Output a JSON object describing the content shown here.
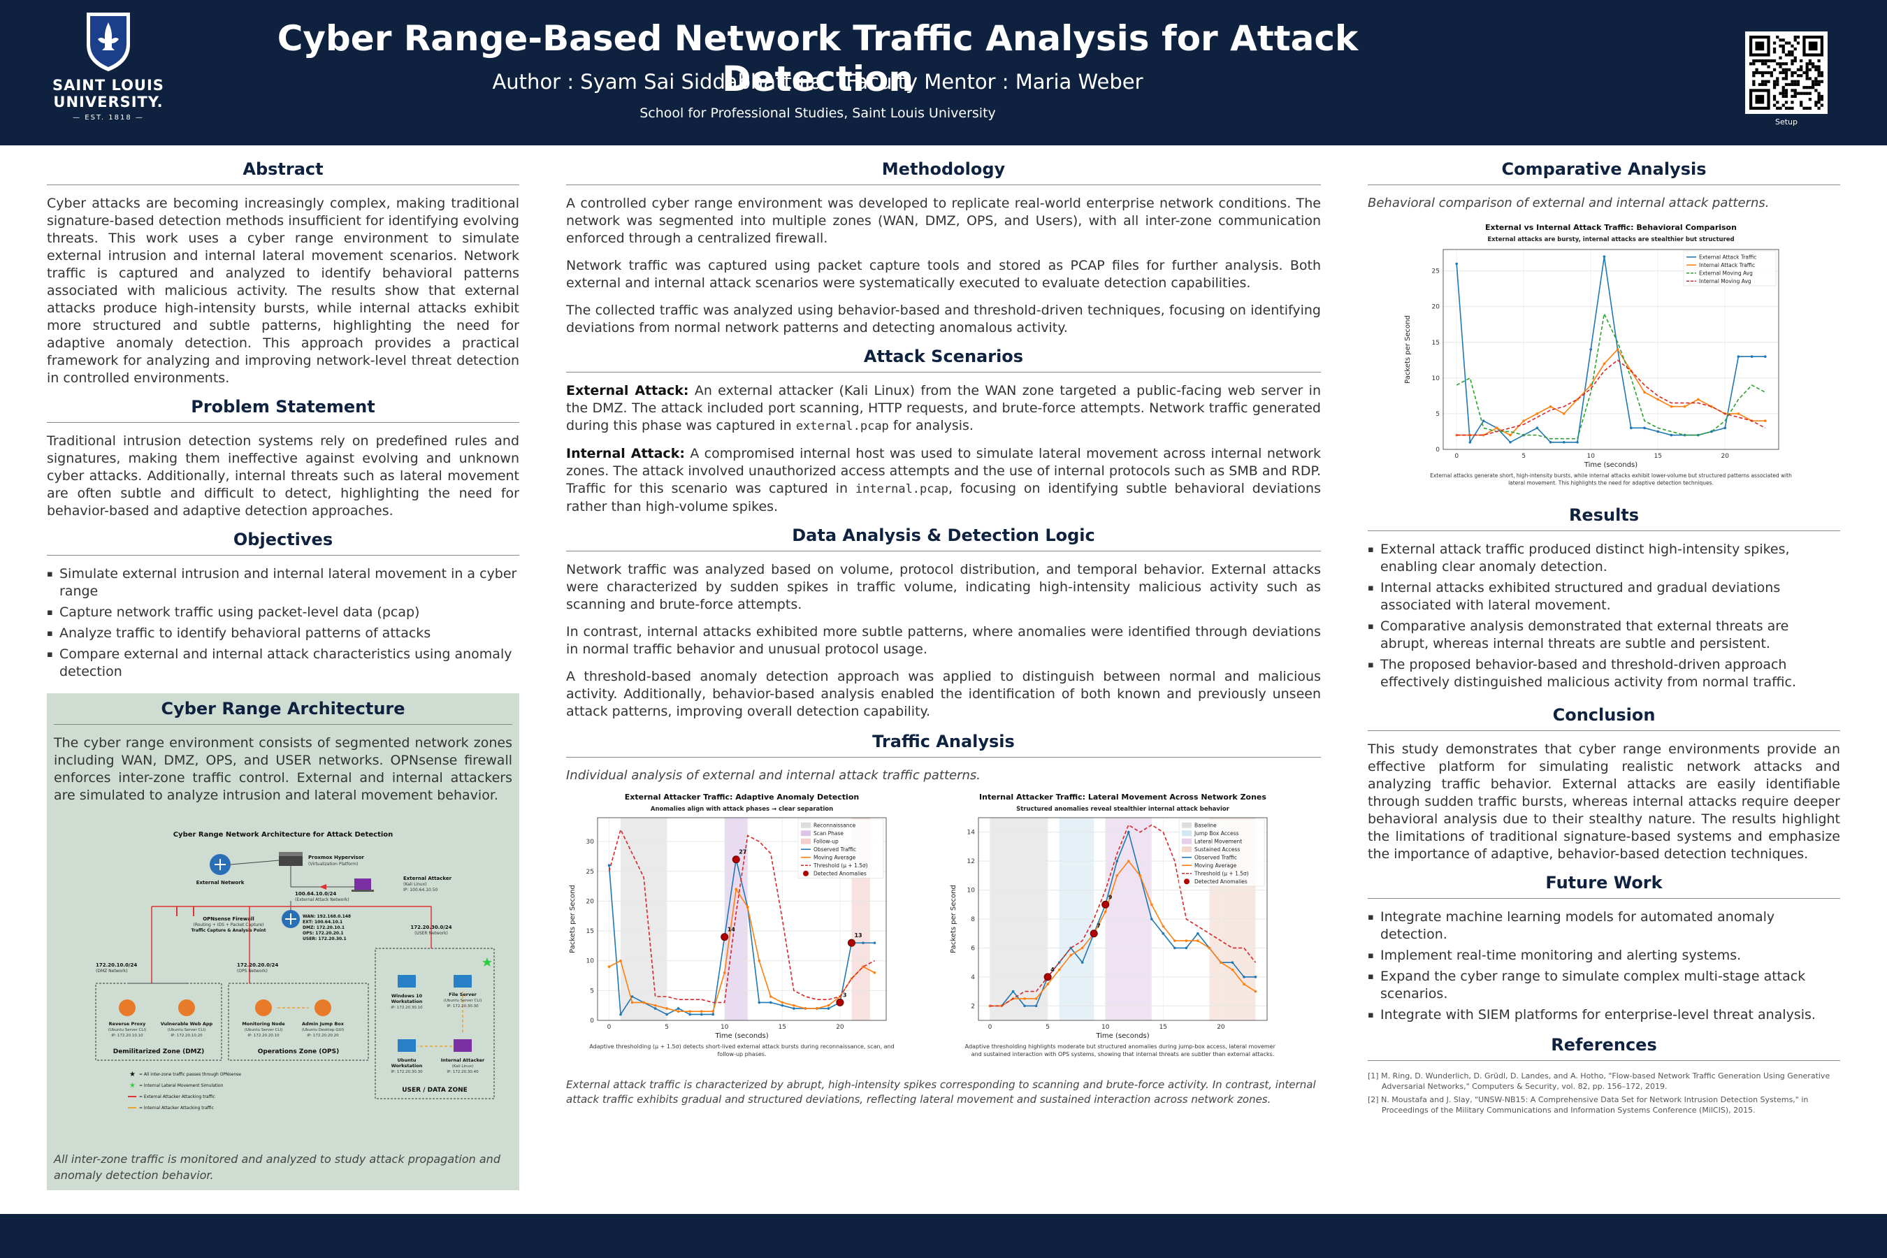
{
  "header": {
    "logo_name_line1": "SAINT LOUIS",
    "logo_name_line2": "UNIVERSITY.",
    "logo_est": "EST. 1818",
    "title": "Cyber Range-Based Network Traffic Analysis for Attack Detection",
    "author": "Author : Syam Sai Siddabhattula",
    "mentor": "Faculty Mentor : Maria Weber",
    "school": "School for Professional Studies, Saint Louis University",
    "qr_label": "Setup"
  },
  "abstract": {
    "heading": "Abstract",
    "text": "Cyber attacks are becoming increasingly complex, making traditional signature-based detection methods insufficient for identifying evolving threats. This work uses a cyber range environment to simulate external intrusion and internal lateral movement scenarios. Network traffic is captured and analyzed to identify behavioral patterns associated with malicious activity. The results show that external attacks produce high-intensity bursts, while internal attacks exhibit more structured and subtle patterns, highlighting the need for adaptive anomaly detection. This approach provides a practical framework for analyzing and improving network-level threat detection in controlled environments."
  },
  "problem": {
    "heading": "Problem Statement",
    "text": "Traditional intrusion detection systems rely on predefined rules and signatures, making them ineffective against evolving and unknown cyber attacks. Additionally, internal threats such as lateral movement are often subtle and difficult to detect, highlighting the need for behavior-based and adaptive detection approaches."
  },
  "objectives": {
    "heading": "Objectives",
    "items": [
      "Simulate external intrusion and internal lateral movement in a cyber range",
      "Capture network traffic using packet-level data (pcap)",
      "Analyze traffic to identify behavioral patterns of attacks",
      "Compare external and internal attack characteristics using anomaly detection"
    ]
  },
  "architecture": {
    "heading": "Cyber Range Architecture",
    "text": "The cyber range environment consists of segmented network zones including WAN, DMZ, OPS, and USER networks. OPNsense firewall enforces inter-zone traffic control. External and internal attackers are simulated to analyze intrusion and lateral movement behavior.",
    "diagram": {
      "title": "Cyber Range Network Architecture for Attack Detection",
      "external_network": "External Network",
      "hypervisor": "Proxmox Hypervisor",
      "hypervisor_sub": "(Virtualization Platform)",
      "ext_attacker": "External Attacker",
      "ext_attacker_sub": "(Kali Linux)",
      "ext_attacker_ip": "IP: 100.64.10.50",
      "ext_net": "100.64.10.0/24",
      "ext_net_sub": "(External Attack Network)",
      "firewall": "OPNsense Firewall",
      "firewall_sub": "(Routing + IDS + Packet Capture)",
      "firewall_sub2": "Traffic Capture & Analysis Point",
      "wan": "WAN: 192.168.0.148",
      "ext": "EXT: 100.64.10.1",
      "dmz_ip": "DMZ: 172.20.10.1",
      "ops_ip": "OPS: 172.20.20.1",
      "user_ip": "USER: 172.20.30.1",
      "dmz_net": "172.20.10.0/24",
      "dmz_net_sub": "(DMZ Network)",
      "ops_net": "172.20.20.0/24",
      "ops_net_sub": "(OPS Network)",
      "user_net": "172.20.30.0/24",
      "user_net_sub": "(USER Network)",
      "rp": "Reverse Proxy",
      "rp_sub": "(Ubuntu Server CLI)",
      "rp_ip": "IP: 172.20.10.10",
      "vw": "Vulnerable Web App",
      "vw_sub": "(Ubuntu Server CLI)",
      "vw_ip": "IP: 172.20.10.20",
      "mn": "Monitoring Node",
      "mn_sub": "(Ubuntu Server CLI)",
      "mn_ip": "IP: 172.20.20.10",
      "aj": "Admin Jump Box",
      "aj_sub": "(Ubuntu Desktop GUI)",
      "aj_ip": "IP: 172.20.20.20",
      "w10": "Windows 10",
      "w10b": "Workstation",
      "w10_ip": "IP: 172.20.30.10",
      "fs": "File Server",
      "fs_sub": "(Ubuntu Server CLI)",
      "fs_ip": "IP: 172.20.30.30",
      "uw": "Ubuntu",
      "uwb": "Workstation",
      "uw_ip": "IP: 172.20.30.30",
      "ia": "Internal Attacker",
      "ia_sub": "(Kali Linux)",
      "ia_ip": "IP: 172.20.30.40",
      "zone_dmz": "Demilitarized Zone (DMZ)",
      "zone_ops": "Operations Zone (OPS)",
      "zone_user": "USER / DATA ZONE",
      "legend": [
        "= All inter-zone traffic passes through OPNsense",
        "= Internal Lateral Movement Simulation",
        "= External Attacker Attacking traffic",
        "= Internal Attacker Attacking traffic"
      ]
    },
    "caption": "All inter-zone traffic is monitored and analyzed to study attack propagation and anomaly detection behavior."
  },
  "methodology": {
    "heading": "Methodology",
    "paras": [
      "A controlled cyber range environment was developed to replicate real-world enterprise network conditions. The network was segmented into multiple zones (WAN, DMZ, OPS, and Users), with all inter-zone communication enforced through a centralized firewall.",
      "Network traffic was captured using packet capture tools and stored as PCAP files for further analysis. Both external and internal attack scenarios were systematically executed to evaluate detection capabilities.",
      "The collected traffic was analyzed using behavior-based and threshold-driven techniques, focusing on identifying deviations from normal network patterns and detecting anomalous activity."
    ]
  },
  "scenarios": {
    "heading": "Attack Scenarios",
    "ext_label": "External Attack:",
    "ext_text": " An external attacker (Kali Linux) from the WAN zone targeted a public-facing web server in the DMZ. The attack included port scanning, HTTP requests, and brute-force attempts. Network traffic generated during this phase was captured in ",
    "ext_file": "external.pcap",
    "ext_end": " for analysis.",
    "int_label": "Internal Attack:",
    "int_text": " A compromised internal host was used to simulate lateral movement across internal network zones. The attack involved unauthorized access attempts and the use of internal protocols such as SMB and RDP. Traffic for this scenario was captured in ",
    "int_file": "internal.pcap",
    "int_end": ", focusing on identifying subtle behavioral deviations rather than high-volume spikes."
  },
  "detection": {
    "heading": "Data Analysis & Detection Logic",
    "paras": [
      "Network traffic was analyzed based on volume, protocol distribution, and temporal behavior. External attacks were characterized by sudden spikes in traffic volume, indicating high-intensity malicious activity such as scanning and brute-force attempts.",
      "In contrast, internal attacks exhibited more subtle patterns, where anomalies were identified through deviations in normal traffic behavior and unusual protocol usage.",
      "A threshold-based anomaly detection approach was applied to distinguish between normal and malicious activity. Additionally, behavior-based analysis enabled the identification of both known and previously unseen attack patterns, improving overall detection capability."
    ]
  },
  "traffic": {
    "heading": "Traffic Analysis",
    "intro": "Individual analysis of external and internal attack traffic patterns.",
    "caption": "External attack traffic is characterized by abrupt, high-intensity spikes corresponding to scanning and brute-force activity. In contrast, internal attack traffic exhibits gradual and structured deviations, reflecting lateral movement and sustained interaction across network zones."
  },
  "comparative": {
    "heading": "Comparative Analysis",
    "intro": "Behavioral comparison of external and internal attack patterns."
  },
  "results": {
    "heading": "Results",
    "items": [
      "External attack traffic produced distinct high-intensity spikes, enabling clear anomaly detection.",
      "Internal attacks exhibited structured and gradual deviations associated with lateral movement.",
      "Comparative analysis demonstrated that external threats are abrupt, whereas internal threats are subtle and persistent.",
      "The proposed behavior-based and threshold-driven approach effectively distinguished malicious activity from normal traffic."
    ]
  },
  "conclusion": {
    "heading": "Conclusion",
    "text": "This study demonstrates that cyber range environments provide an effective platform for simulating realistic network attacks and analyzing traffic behavior. External attacks are easily identifiable through sudden traffic bursts, whereas internal attacks require deeper behavioral analysis due to their stealthy nature. The results highlight the limitations of traditional signature-based systems and emphasize the importance of adaptive, behavior-based detection techniques."
  },
  "future": {
    "heading": "Future Work",
    "items": [
      "Integrate machine learning models for automated anomaly detection.",
      "Implement real-time monitoring and alerting systems.",
      "Expand the cyber range to simulate complex multi-stage attack scenarios.",
      "Integrate with SIEM platforms for enterprise-level threat analysis."
    ]
  },
  "references": {
    "heading": "References",
    "items": [
      "[1]  M. Ring, D. Wunderlich, D. Grüdl, D. Landes, and A. Hotho, \"Flow-based Network Traffic Generation Using Generative Adversarial Networks,\" Computers & Security, vol. 82, pp. 156–172, 2019.",
      "[2]  N. Moustafa and J. Slay, \"UNSW-NB15: A Comprehensive Data Set for Network Intrusion Detection Systems,\" in Proceedings of the Military Communications and Information Systems Conference (MilCIS), 2015."
    ]
  },
  "chart_data": [
    {
      "type": "line",
      "title": "External Attacker Traffic: Adaptive Anomaly Detection",
      "subtitle": "Anomalies align with attack phases → clear separation",
      "xlabel": "Time (seconds)",
      "ylabel": "Packets per Second",
      "xlim": [
        -1,
        24
      ],
      "ylim": [
        0,
        34
      ],
      "xticks": [
        0,
        5,
        10,
        15,
        20
      ],
      "yticks": [
        0,
        5,
        10,
        15,
        20,
        25,
        30
      ],
      "phases": [
        {
          "name": "Reconnaissance",
          "from": 1,
          "to": 5,
          "color": "#bbbbbb"
        },
        {
          "name": "Scan Phase",
          "from": 10,
          "to": 12,
          "color": "#b58ad0"
        },
        {
          "name": "Follow-up",
          "from": 21,
          "to": 22.6,
          "color": "#e6a09a"
        }
      ],
      "x": [
        0,
        1,
        2,
        3,
        4,
        5,
        6,
        7,
        8,
        9,
        10,
        11,
        12,
        13,
        14,
        15,
        16,
        17,
        18,
        19,
        20,
        21,
        22,
        23
      ],
      "series": [
        {
          "name": "Observed Traffic",
          "color": "#1f77b4",
          "values": [
            26,
            1,
            4,
            3,
            2,
            1,
            2,
            1,
            1,
            1,
            14,
            27,
            19,
            3,
            3,
            2.5,
            2,
            2,
            2,
            2,
            3,
            13,
            13,
            13
          ]
        },
        {
          "name": "Moving Average",
          "color": "#ff7f0e",
          "values": [
            9,
            10,
            3,
            3,
            2.5,
            2,
            1.5,
            1.5,
            1.5,
            1.5,
            8,
            22,
            19,
            10,
            4,
            3,
            2.5,
            2,
            2,
            2.5,
            4,
            7,
            9,
            8
          ]
        },
        {
          "name": "Threshold (μ + 1.5σ)",
          "color": "#d62728",
          "dashed": true,
          "values": [
            25,
            32,
            28,
            24,
            4,
            4,
            3.5,
            3.5,
            3.5,
            3,
            3,
            18,
            31,
            30,
            28,
            17,
            5,
            4,
            3.5,
            3.5,
            4,
            7,
            9,
            10
          ]
        }
      ],
      "anomalies": [
        {
          "x": 10,
          "y": 14,
          "label": "14"
        },
        {
          "x": 11,
          "y": 27,
          "label": "27"
        },
        {
          "x": 20,
          "y": 3,
          "label": "3"
        },
        {
          "x": 21,
          "y": 13,
          "label": "13"
        }
      ],
      "anomaly_name": "Detected Anomalies",
      "note": "Adaptive thresholding (μ + 1.5σ) detects short-lived external attack bursts during reconnaissance, scan, and follow-up phases."
    },
    {
      "type": "line",
      "title": "Internal Attacker Traffic: Lateral Movement Across Network Zones",
      "subtitle": "Structured anomalies reveal stealthier internal attack behavior",
      "xlabel": "Time (seconds)",
      "ylabel": "Packets per Second",
      "xlim": [
        -1,
        24
      ],
      "ylim": [
        1,
        15
      ],
      "xticks": [
        0,
        5,
        10,
        15,
        20
      ],
      "yticks": [
        2,
        4,
        6,
        8,
        10,
        12,
        14
      ],
      "phases": [
        {
          "name": "Baseline",
          "from": 0,
          "to": 5,
          "color": "#bbbbbb"
        },
        {
          "name": "Jump Box Access",
          "from": 6,
          "to": 9,
          "color": "#a9cde6"
        },
        {
          "name": "Lateral Movement",
          "from": 10,
          "to": 14,
          "color": "#c9a2d6"
        },
        {
          "name": "Sustained Access",
          "from": 19,
          "to": 23,
          "color": "#e6b09a"
        }
      ],
      "x": [
        0,
        1,
        2,
        3,
        4,
        5,
        6,
        7,
        8,
        9,
        10,
        11,
        12,
        13,
        14,
        15,
        16,
        17,
        18,
        19,
        20,
        21,
        22,
        23
      ],
      "series": [
        {
          "name": "Observed Traffic",
          "color": "#1f77b4",
          "values": [
            2,
            2,
            3,
            2,
            2,
            4,
            5,
            6,
            5,
            7,
            9,
            12,
            14,
            11,
            8,
            7,
            6,
            6,
            7,
            6,
            5,
            5,
            4,
            4
          ]
        },
        {
          "name": "Moving Average",
          "color": "#ff7f0e",
          "values": [
            2,
            2,
            2.5,
            2.5,
            2.5,
            3.5,
            4.5,
            5.5,
            6,
            7,
            8.5,
            11,
            12,
            11,
            9,
            7.5,
            6.5,
            6.5,
            6.5,
            6,
            5,
            4.5,
            3.5,
            3
          ]
        },
        {
          "name": "Threshold (μ + 1.5σ)",
          "color": "#d62728",
          "dashed": true,
          "values": [
            2,
            2,
            2.5,
            3,
            3,
            4,
            5,
            6,
            6.5,
            8,
            10,
            12.5,
            14.5,
            14,
            14.5,
            14,
            12,
            8,
            7.5,
            7,
            6.5,
            6,
            6,
            5
          ]
        }
      ],
      "anomalies": [
        {
          "x": 5,
          "y": 4,
          "label": "4"
        },
        {
          "x": 9,
          "y": 7,
          "label": "7"
        },
        {
          "x": 10,
          "y": 9,
          "label": "9"
        }
      ],
      "anomaly_name": "Detected Anomalies",
      "note": "Adaptive thresholding highlights moderate but structured anomalies during jump-box access, lateral movement, and sustained interaction with OPS systems, showing that internal threats are subtler than external attacks."
    },
    {
      "type": "line",
      "title": "External vs Internal Attack Traffic: Behavioral Comparison",
      "subtitle": "External attacks are bursty, internal attacks are stealthier but structured",
      "xlabel": "Time (seconds)",
      "ylabel": "Packets per Second",
      "xlim": [
        -1,
        24
      ],
      "ylim": [
        0,
        28
      ],
      "xticks": [
        0,
        5,
        10,
        15,
        20
      ],
      "yticks": [
        0,
        5,
        10,
        15,
        20,
        25
      ],
      "x": [
        0,
        1,
        2,
        3,
        4,
        5,
        6,
        7,
        8,
        9,
        10,
        11,
        12,
        13,
        14,
        15,
        16,
        17,
        18,
        19,
        20,
        21,
        22,
        23
      ],
      "series": [
        {
          "name": "External Attack Traffic",
          "color": "#1f77b4",
          "values": [
            26,
            1,
            4,
            3,
            1,
            2,
            3,
            1,
            1,
            1,
            14,
            27,
            14,
            3,
            3,
            2.5,
            2,
            2,
            2,
            2.5,
            3,
            13,
            13,
            13
          ]
        },
        {
          "name": "Internal Attack Traffic",
          "color": "#ff7f0e",
          "values": [
            2,
            2,
            2,
            3,
            2,
            4,
            5,
            6,
            5,
            7,
            9,
            12,
            14,
            11,
            8,
            7,
            6,
            6,
            7,
            6,
            5,
            5,
            4,
            4
          ]
        },
        {
          "name": "External Moving Avg",
          "color": "#2ca02c",
          "dashed": true,
          "values": [
            9,
            10,
            3,
            2.5,
            2.5,
            2,
            2,
            1.5,
            1.5,
            1.5,
            8,
            19,
            15,
            10,
            4,
            3,
            2.5,
            2,
            2,
            2.5,
            4,
            7,
            9,
            8
          ]
        },
        {
          "name": "Internal Moving Avg",
          "color": "#d62728",
          "dashed": true,
          "values": [
            2,
            2,
            2,
            2.5,
            3,
            3.5,
            4.5,
            5.5,
            6,
            7,
            8.5,
            11,
            12.5,
            11,
            9,
            7.5,
            6.5,
            6.5,
            6.5,
            6,
            5,
            4.5,
            4,
            3
          ]
        }
      ],
      "note": "External attacks generate short, high-intensity bursts, while internal attacks exhibit lower-volume but structured patterns associated with lateral movement. This highlights the need for adaptive detection techniques."
    }
  ]
}
